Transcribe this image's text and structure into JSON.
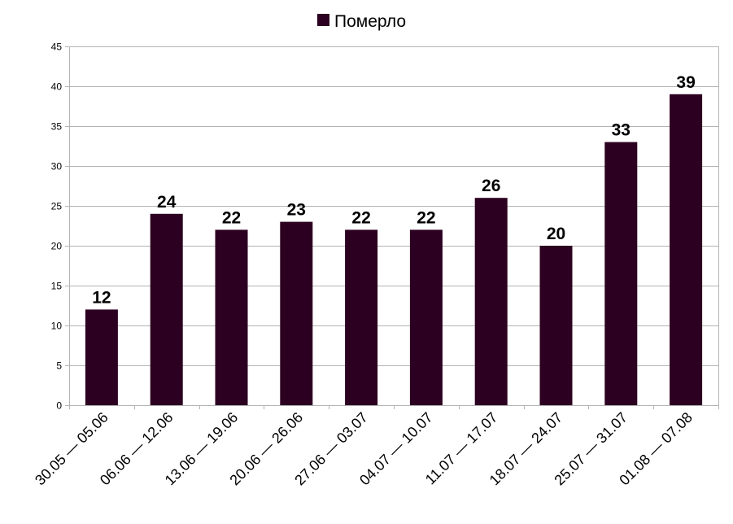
{
  "chart_data": {
    "type": "bar",
    "title": "",
    "xlabel": "",
    "ylabel": "",
    "categories": [
      "30.05 — 05.06",
      "06.06 — 12.06",
      "13.06 — 19.06",
      "20.06 — 26.06",
      "27.06 — 03.07",
      "04.07 — 10.07",
      "11.07 — 17.07",
      "18.07 — 24.07",
      "25.07 — 31.07",
      "01.08 — 07.08"
    ],
    "series": [
      {
        "name": "Померло",
        "color": "#2c0020",
        "values": [
          12,
          24,
          22,
          23,
          22,
          22,
          26,
          20,
          33,
          39
        ]
      }
    ],
    "ylim": [
      0,
      45
    ],
    "yticks": [
      0,
      5,
      10,
      15,
      20,
      25,
      30,
      35,
      40,
      45
    ],
    "grid": true,
    "legend_position": "top"
  }
}
